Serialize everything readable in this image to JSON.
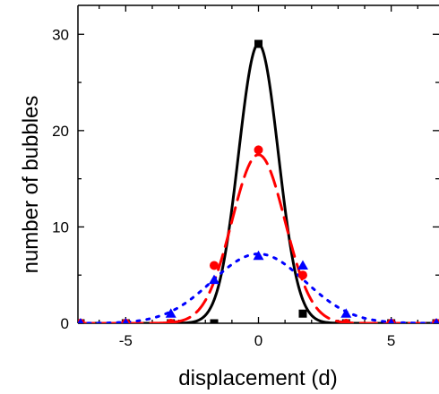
{
  "chart_data": {
    "type": "scatter",
    "title": "",
    "xlabel": "displacement (d)",
    "ylabel": "number of bubbles",
    "xlim": [
      -6.8,
      6.8
    ],
    "ylim": [
      0,
      33
    ],
    "xticks": [
      -5,
      0,
      5
    ],
    "yticks": [
      0,
      10,
      20,
      30
    ],
    "xtick_labels": [
      "-5",
      "0",
      "5"
    ],
    "ytick_labels": [
      "0",
      "10",
      "20",
      "30"
    ],
    "grid": false,
    "legend": "none",
    "series": [
      {
        "marker": "square",
        "color": "#000000",
        "line_style": "solid",
        "x": [
          -6.7,
          -5,
          -3.3,
          -1.67,
          0,
          1.67,
          3.3,
          5,
          6.7
        ],
        "y": [
          0,
          0,
          0,
          0,
          29,
          1,
          0,
          0,
          0
        ],
        "fit": {
          "amplitude": 29,
          "sigma": 0.75
        }
      },
      {
        "marker": "circle",
        "color": "#ff0000",
        "line_style": "dashed",
        "x": [
          -6.7,
          -5,
          -3.3,
          -1.67,
          0,
          1.67,
          3.3,
          5,
          6.7
        ],
        "y": [
          0,
          0,
          0,
          6,
          18,
          5,
          0,
          0,
          0
        ],
        "fit": {
          "amplitude": 17.5,
          "sigma": 1.0
        }
      },
      {
        "marker": "triangle",
        "color": "#0000ff",
        "line_style": "dotted",
        "x": [
          -6.7,
          -5,
          -3.3,
          -1.67,
          0,
          1.67,
          3.3,
          5,
          6.7
        ],
        "y": [
          0,
          0,
          1,
          4.5,
          7,
          6,
          1,
          0,
          0
        ],
        "fit": {
          "amplitude": 7.2,
          "sigma": 1.75
        }
      }
    ]
  }
}
